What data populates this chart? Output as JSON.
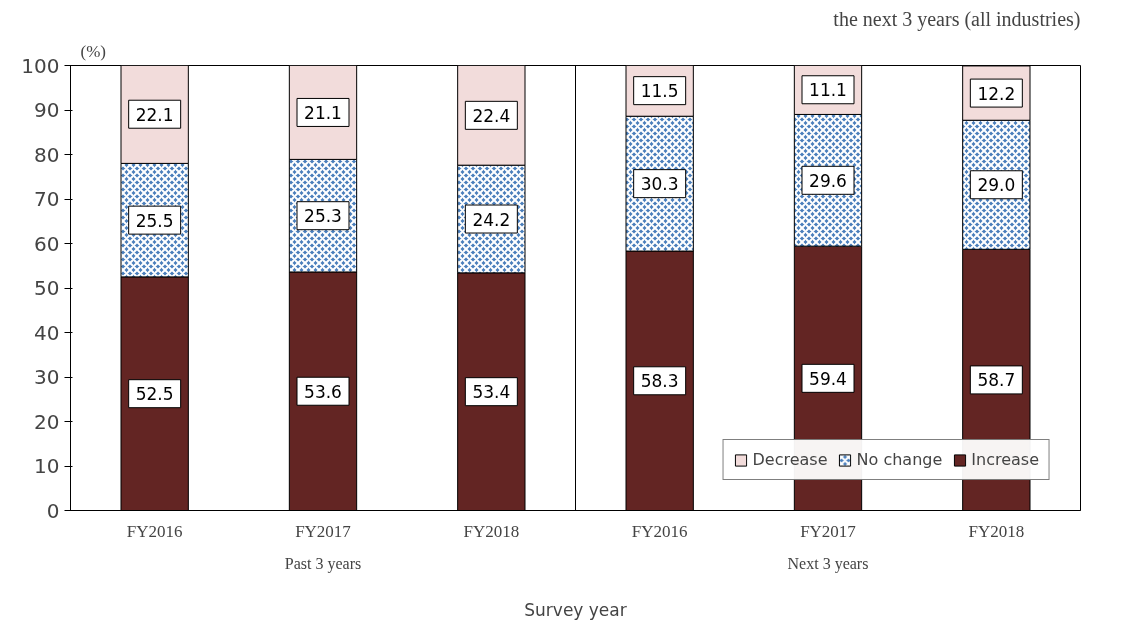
{
  "chart_data": {
    "type": "bar",
    "stacked": true,
    "title": "the next 3 years (all industries)",
    "ylabel": "(%)",
    "xlabel": "Survey year",
    "categories": [
      "FY2016",
      "FY2017",
      "FY2018",
      "FY2016",
      "FY2017",
      "FY2018"
    ],
    "annotations": [
      "Past 3 years",
      "Next 3 years"
    ],
    "series": [
      {
        "name": "Increase",
        "color": "#632523",
        "values": [
          52.5,
          53.6,
          53.4,
          58.3,
          59.4,
          58.7
        ]
      },
      {
        "name": "No change",
        "color": "#4a7ebb",
        "values": [
          25.5,
          25.3,
          24.2,
          30.3,
          29.6,
          29.0
        ],
        "value_labels": [
          "25.5",
          "25.3",
          "24.2",
          "30.3",
          "29.6",
          "29.0"
        ]
      },
      {
        "name": "Decrease",
        "color": "#f2dcdb",
        "values": [
          22.1,
          21.1,
          22.4,
          11.5,
          11.1,
          12.2
        ]
      }
    ],
    "ylim": [
      0,
      100
    ],
    "yticks": [
      0,
      10,
      20,
      30,
      40,
      50,
      60,
      70,
      80,
      90,
      100
    ],
    "data_labels": true,
    "grid": false,
    "legend": "bottom right"
  }
}
